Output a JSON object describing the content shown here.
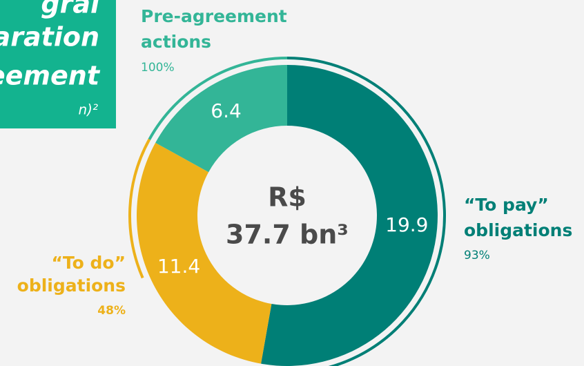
{
  "chart_data": {
    "type": "donut",
    "title_lines": [
      "gral",
      "aration",
      "eement"
    ],
    "title_note": "n)²",
    "center_label": [
      "R$",
      "37.7 bn³"
    ],
    "categories": [
      [
        "“To pay”",
        "obligations"
      ],
      [
        "“To do”",
        "obligations"
      ],
      [
        "Pre-agreement",
        "actions"
      ]
    ],
    "values": [
      19.9,
      11.4,
      6.4
    ],
    "colors": [
      "#007f76",
      "#edb11a",
      "#33b597"
    ],
    "percents": [
      93,
      48,
      100
    ],
    "percent_labels": [
      "93%",
      "48%",
      "100%"
    ]
  }
}
